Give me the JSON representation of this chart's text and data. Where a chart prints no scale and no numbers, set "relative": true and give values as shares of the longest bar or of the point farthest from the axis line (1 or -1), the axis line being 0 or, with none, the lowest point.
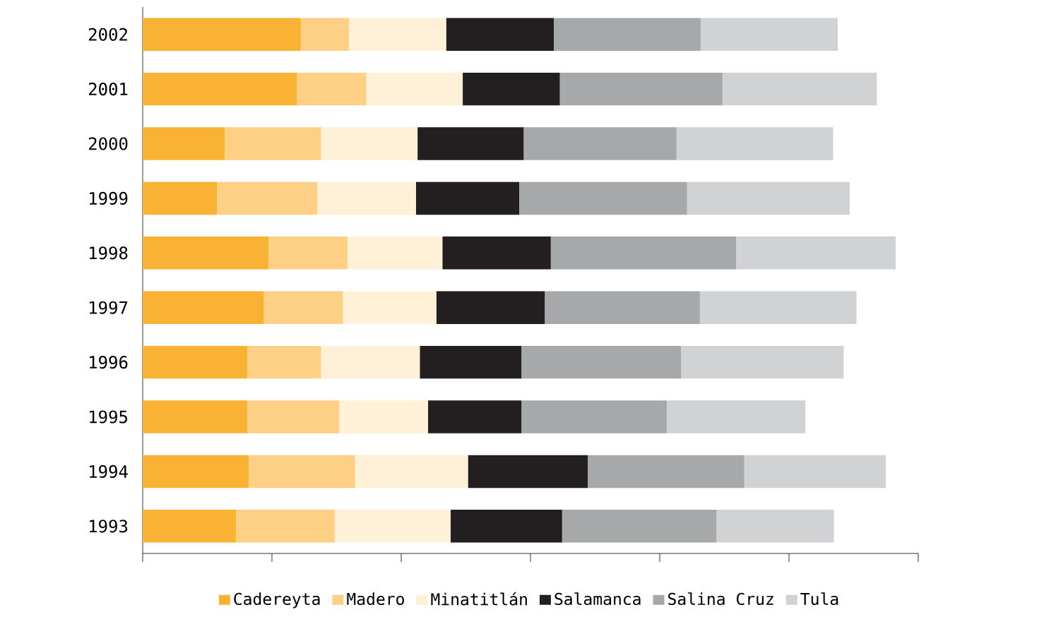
{
  "chart_data": {
    "type": "bar",
    "orientation": "horizontal",
    "stacked": true,
    "relative": true,
    "legend": "bottom",
    "grid": false,
    "categories": [
      "2002",
      "2001",
      "2000",
      "1999",
      "1998",
      "1997",
      "1996",
      "1995",
      "1994",
      "1993"
    ],
    "series": [
      {
        "name": "Cadereyta",
        "color": "#f9b233",
        "values": [
          0.21,
          0.205,
          0.109,
          0.099,
          0.167,
          0.161,
          0.139,
          0.139,
          0.141,
          0.124
        ]
      },
      {
        "name": "Madero",
        "color": "#fdd085",
        "values": [
          0.064,
          0.092,
          0.128,
          0.133,
          0.105,
          0.105,
          0.098,
          0.122,
          0.141,
          0.131
        ]
      },
      {
        "name": "Minatitlán",
        "color": "#fef1d8",
        "values": [
          0.129,
          0.128,
          0.128,
          0.131,
          0.126,
          0.124,
          0.131,
          0.118,
          0.15,
          0.154
        ]
      },
      {
        "name": "Salamanca",
        "color": "#231f20",
        "values": [
          0.143,
          0.129,
          0.141,
          0.137,
          0.144,
          0.144,
          0.135,
          0.124,
          0.159,
          0.148
        ]
      },
      {
        "name": "Salina Cruz",
        "color": "#a7a8aa",
        "values": [
          0.195,
          0.216,
          0.203,
          0.223,
          0.246,
          0.206,
          0.212,
          0.193,
          0.208,
          0.205
        ]
      },
      {
        "name": "Tula",
        "color": "#d1d2d4",
        "values": [
          0.182,
          0.205,
          0.208,
          0.216,
          0.212,
          0.208,
          0.216,
          0.184,
          0.188,
          0.156
        ]
      }
    ]
  }
}
